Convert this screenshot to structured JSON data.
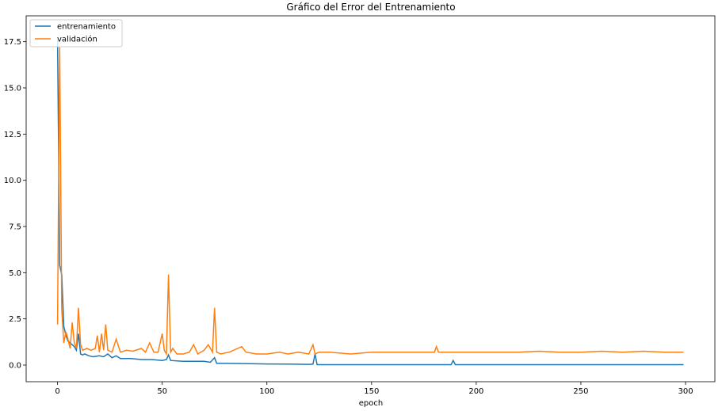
{
  "chart_data": {
    "type": "line",
    "title": "Gráfico del Error del Entrenamiento",
    "xlabel": "epoch",
    "ylabel": "",
    "xlim": [
      -15,
      314
    ],
    "ylim": [
      -0.9,
      18.9
    ],
    "xticks": [
      0,
      50,
      100,
      150,
      200,
      250,
      300
    ],
    "yticks": [
      0.0,
      2.5,
      5.0,
      7.5,
      10.0,
      12.5,
      15.0,
      17.5
    ],
    "ytick_labels": [
      "0.0",
      "2.5",
      "5.0",
      "7.5",
      "10.0",
      "12.5",
      "15.0",
      "17.5"
    ],
    "grid": false,
    "legend": "top-left",
    "series": [
      {
        "name": "entrenamiento",
        "color": "#1f77b4",
        "points": [
          [
            0,
            17.6
          ],
          [
            1,
            5.4
          ],
          [
            2,
            4.9
          ],
          [
            3,
            2.1
          ],
          [
            4,
            1.6
          ],
          [
            5,
            1.3
          ],
          [
            6,
            1.2
          ],
          [
            7,
            1.1
          ],
          [
            8,
            1.0
          ],
          [
            9,
            0.8
          ],
          [
            10,
            1.7
          ],
          [
            11,
            0.6
          ],
          [
            12,
            0.55
          ],
          [
            13,
            0.6
          ],
          [
            15,
            0.5
          ],
          [
            17,
            0.45
          ],
          [
            20,
            0.5
          ],
          [
            22,
            0.45
          ],
          [
            24,
            0.6
          ],
          [
            26,
            0.4
          ],
          [
            28,
            0.5
          ],
          [
            30,
            0.35
          ],
          [
            35,
            0.35
          ],
          [
            40,
            0.3
          ],
          [
            45,
            0.3
          ],
          [
            50,
            0.25
          ],
          [
            52,
            0.3
          ],
          [
            53,
            0.55
          ],
          [
            54,
            0.25
          ],
          [
            60,
            0.2
          ],
          [
            70,
            0.2
          ],
          [
            73,
            0.15
          ],
          [
            75,
            0.4
          ],
          [
            76,
            0.1
          ],
          [
            80,
            0.1
          ],
          [
            90,
            0.08
          ],
          [
            100,
            0.06
          ],
          [
            110,
            0.05
          ],
          [
            120,
            0.04
          ],
          [
            122,
            0.05
          ],
          [
            123,
            0.6
          ],
          [
            124,
            0.02
          ],
          [
            140,
            0.02
          ],
          [
            160,
            0.02
          ],
          [
            180,
            0.02
          ],
          [
            188,
            0.02
          ],
          [
            189,
            0.25
          ],
          [
            190,
            0.02
          ],
          [
            220,
            0.02
          ],
          [
            260,
            0.02
          ],
          [
            299,
            0.02
          ]
        ]
      },
      {
        "name": "validación",
        "color": "#ff7f0e",
        "points": [
          [
            0,
            2.2
          ],
          [
            1,
            17.2
          ],
          [
            2,
            3.0
          ],
          [
            3,
            1.2
          ],
          [
            4,
            1.8
          ],
          [
            5,
            1.4
          ],
          [
            6,
            0.9
          ],
          [
            7,
            2.3
          ],
          [
            8,
            1.2
          ],
          [
            9,
            0.9
          ],
          [
            10,
            3.1
          ],
          [
            11,
            1.1
          ],
          [
            12,
            0.8
          ],
          [
            14,
            0.9
          ],
          [
            16,
            0.8
          ],
          [
            18,
            0.9
          ],
          [
            19,
            1.6
          ],
          [
            20,
            0.7
          ],
          [
            21,
            1.7
          ],
          [
            22,
            0.8
          ],
          [
            23,
            2.2
          ],
          [
            24,
            0.8
          ],
          [
            26,
            0.7
          ],
          [
            28,
            1.4
          ],
          [
            30,
            0.7
          ],
          [
            33,
            0.8
          ],
          [
            36,
            0.75
          ],
          [
            40,
            0.9
          ],
          [
            42,
            0.7
          ],
          [
            44,
            1.2
          ],
          [
            46,
            0.7
          ],
          [
            48,
            0.7
          ],
          [
            50,
            1.7
          ],
          [
            51,
            0.8
          ],
          [
            52,
            0.6
          ],
          [
            53,
            4.9
          ],
          [
            54,
            0.7
          ],
          [
            55,
            0.9
          ],
          [
            57,
            0.6
          ],
          [
            60,
            0.6
          ],
          [
            63,
            0.7
          ],
          [
            65,
            1.1
          ],
          [
            67,
            0.6
          ],
          [
            70,
            0.8
          ],
          [
            72,
            1.1
          ],
          [
            74,
            0.7
          ],
          [
            75,
            3.1
          ],
          [
            76,
            0.7
          ],
          [
            78,
            0.6
          ],
          [
            82,
            0.7
          ],
          [
            86,
            0.9
          ],
          [
            88,
            1.0
          ],
          [
            90,
            0.7
          ],
          [
            95,
            0.6
          ],
          [
            100,
            0.6
          ],
          [
            106,
            0.7
          ],
          [
            110,
            0.6
          ],
          [
            115,
            0.7
          ],
          [
            120,
            0.6
          ],
          [
            122,
            1.1
          ],
          [
            123,
            0.6
          ],
          [
            125,
            0.7
          ],
          [
            130,
            0.7
          ],
          [
            140,
            0.6
          ],
          [
            150,
            0.7
          ],
          [
            160,
            0.7
          ],
          [
            170,
            0.7
          ],
          [
            180,
            0.7
          ],
          [
            181,
            1.0
          ],
          [
            182,
            0.7
          ],
          [
            190,
            0.7
          ],
          [
            200,
            0.7
          ],
          [
            210,
            0.7
          ],
          [
            220,
            0.7
          ],
          [
            230,
            0.75
          ],
          [
            240,
            0.7
          ],
          [
            250,
            0.7
          ],
          [
            260,
            0.75
          ],
          [
            270,
            0.7
          ],
          [
            280,
            0.75
          ],
          [
            290,
            0.7
          ],
          [
            299,
            0.7
          ]
        ]
      }
    ]
  }
}
